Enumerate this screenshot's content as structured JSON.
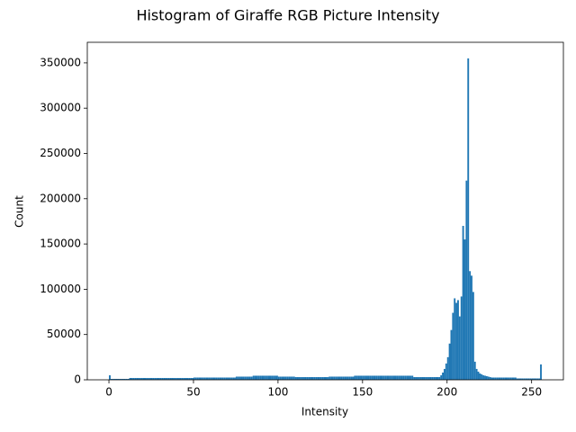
{
  "chart_data": {
    "type": "histogram",
    "title": "Histogram of Giraffe RGB Picture Intensity",
    "xlabel": "Intensity",
    "ylabel": "Count",
    "color": "#1f77b4",
    "bins": [
      0,
      1,
      2,
      3,
      4,
      5,
      6,
      7,
      8,
      9,
      10,
      11,
      12,
      13,
      14,
      15,
      16,
      17,
      18,
      19,
      20,
      21,
      22,
      23,
      24,
      25,
      26,
      27,
      28,
      29,
      30,
      31,
      32,
      33,
      34,
      35,
      36,
      37,
      38,
      39,
      40,
      41,
      42,
      43,
      44,
      45,
      46,
      47,
      48,
      49,
      50,
      51,
      52,
      53,
      54,
      55,
      56,
      57,
      58,
      59,
      60,
      61,
      62,
      63,
      64,
      65,
      66,
      67,
      68,
      69,
      70,
      71,
      72,
      73,
      74,
      75,
      76,
      77,
      78,
      79,
      80,
      81,
      82,
      83,
      84,
      85,
      86,
      87,
      88,
      89,
      90,
      91,
      92,
      93,
      94,
      95,
      96,
      97,
      98,
      99,
      100,
      101,
      102,
      103,
      104,
      105,
      106,
      107,
      108,
      109,
      110,
      111,
      112,
      113,
      114,
      115,
      116,
      117,
      118,
      119,
      120,
      121,
      122,
      123,
      124,
      125,
      126,
      127,
      128,
      129,
      130,
      131,
      132,
      133,
      134,
      135,
      136,
      137,
      138,
      139,
      140,
      141,
      142,
      143,
      144,
      145,
      146,
      147,
      148,
      149,
      150,
      151,
      152,
      153,
      154,
      155,
      156,
      157,
      158,
      159,
      160,
      161,
      162,
      163,
      164,
      165,
      166,
      167,
      168,
      169,
      170,
      171,
      172,
      173,
      174,
      175,
      176,
      177,
      178,
      179,
      180,
      181,
      182,
      183,
      184,
      185,
      186,
      187,
      188,
      189,
      190,
      191,
      192,
      193,
      194,
      195,
      196,
      197,
      198,
      199,
      200,
      201,
      202,
      203,
      204,
      205,
      206,
      207,
      208,
      209,
      210,
      211,
      212,
      213,
      214,
      215,
      216,
      217,
      218,
      219,
      220,
      221,
      222,
      223,
      224,
      225,
      226,
      227,
      228,
      229,
      230,
      231,
      232,
      233,
      234,
      235,
      236,
      237,
      238,
      239,
      240,
      241,
      242,
      243,
      244,
      245,
      246,
      247,
      248,
      249,
      250,
      251,
      252,
      253,
      254,
      255,
      256
    ],
    "counts": [
      5000,
      1000,
      1000,
      1000,
      1000,
      1000,
      1000,
      1000,
      1000,
      1000,
      1000,
      1000,
      2000,
      2000,
      2000,
      2000,
      2000,
      2000,
      2000,
      2000,
      2000,
      2000,
      2000,
      2000,
      2000,
      2000,
      2000,
      2000,
      2000,
      2000,
      2000,
      2000,
      2000,
      2000,
      2000,
      2000,
      2000,
      2000,
      2000,
      2000,
      2000,
      2000,
      2000,
      2000,
      2000,
      2000,
      2000,
      2000,
      2000,
      2000,
      2500,
      2500,
      2500,
      2500,
      2500,
      2500,
      2500,
      2500,
      2500,
      2500,
      2500,
      2500,
      2500,
      2500,
      2500,
      2500,
      2500,
      2500,
      2500,
      2500,
      2500,
      2500,
      2500,
      2500,
      2500,
      3500,
      3500,
      3500,
      3500,
      3500,
      3500,
      3500,
      3500,
      3500,
      3500,
      4500,
      4500,
      4500,
      4500,
      4500,
      4500,
      4500,
      4500,
      4500,
      4500,
      4500,
      4500,
      4500,
      4500,
      4500,
      3500,
      3500,
      3500,
      3500,
      3500,
      3500,
      3500,
      3500,
      3500,
      3500,
      3000,
      3000,
      3000,
      3000,
      3000,
      3000,
      3000,
      3000,
      3000,
      3000,
      3000,
      3000,
      3000,
      3000,
      3000,
      3000,
      3000,
      3000,
      3000,
      3000,
      3500,
      3500,
      3500,
      3500,
      3500,
      3500,
      3500,
      3500,
      3500,
      3500,
      3500,
      3500,
      3500,
      3500,
      3500,
      4500,
      4500,
      4500,
      4500,
      4500,
      4500,
      4500,
      4500,
      4500,
      4500,
      4500,
      4500,
      4500,
      4500,
      4500,
      4500,
      4500,
      4500,
      4500,
      4500,
      4500,
      4500,
      4500,
      4500,
      4500,
      4500,
      4500,
      4500,
      4500,
      4500,
      4500,
      4500,
      4500,
      4500,
      4500,
      3000,
      3000,
      3000,
      3000,
      3000,
      3000,
      3000,
      3000,
      3000,
      3000,
      3000,
      3000,
      3000,
      3000,
      3000,
      3000,
      5000,
      8000,
      12000,
      18000,
      25000,
      40000,
      55000,
      74000,
      90000,
      85000,
      88000,
      70000,
      92000,
      170000,
      155000,
      220000,
      355000,
      120000,
      115000,
      97000,
      20000,
      12000,
      9000,
      7000,
      6000,
      5000,
      4500,
      4000,
      3500,
      3000,
      2500,
      2500,
      2500,
      2500,
      2500,
      2500,
      2500,
      2500,
      2500,
      2500,
      2500,
      2500,
      2500,
      2500,
      2500,
      1500,
      1500,
      1500,
      1500,
      1500,
      1500,
      1500,
      1500,
      1500,
      1500,
      1500,
      1500,
      1500,
      1500,
      17000
    ],
    "xlim": [
      -12.8,
      268.8
    ],
    "ylim": [
      0,
      372750
    ],
    "xticks": [
      0,
      50,
      100,
      150,
      200,
      250
    ],
    "yticks": [
      0,
      50000,
      100000,
      150000,
      200000,
      250000,
      300000,
      350000
    ]
  }
}
